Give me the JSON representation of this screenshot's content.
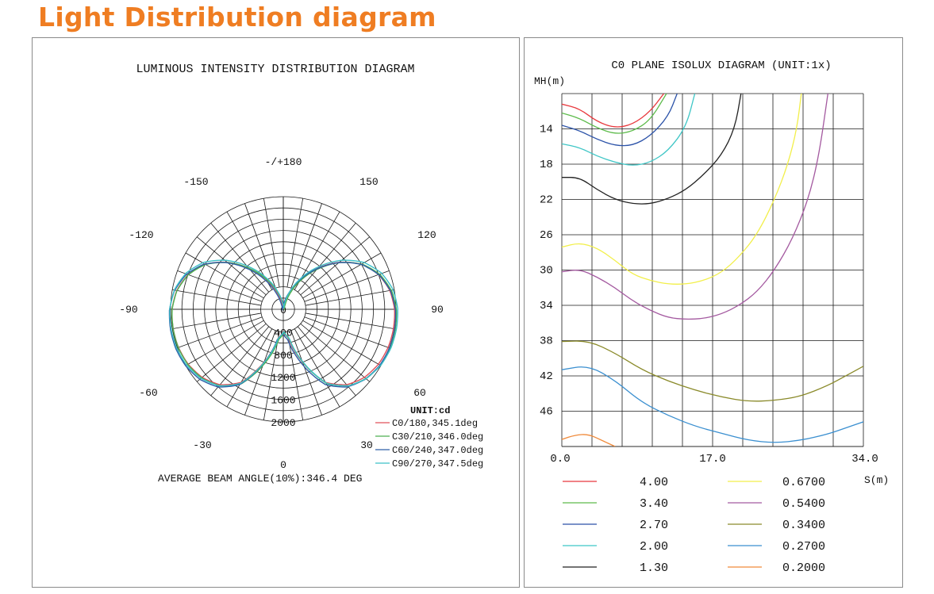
{
  "title": "Light Distribution diagram",
  "colors": {
    "title": "#EF7D22",
    "grid": "#1a1a1a",
    "c0": "#e0505a",
    "c30": "#4caf50",
    "c60": "#2e5fa8",
    "c90": "#3cc0c8",
    "iso": [
      "#e8383d",
      "#5dbb4b",
      "#2b52a8",
      "#3fc6c6",
      "#222222",
      "#f2ef4a",
      "#a45aa0",
      "#8a8a2a",
      "#3a8fd0",
      "#f08a3a"
    ]
  },
  "chart_data": [
    {
      "type": "polar",
      "title": "LUMINOUS INTENSITY DISTRIBUTION DIAGRAM",
      "unit_label": "UNIT:cd",
      "angle_labels": [
        "-/+180",
        "-150",
        "150",
        "-120",
        "120",
        "-90",
        "90",
        "-60",
        "60",
        "-30",
        "30",
        "0"
      ],
      "radial_labels": [
        "0",
        "400",
        "800",
        "1200",
        "1600",
        "2000"
      ],
      "radial_max": 2000,
      "grid": true,
      "legend_position": "bottom-right",
      "series": [
        {
          "name": "C0/180,345.1deg",
          "color_key": "c0"
        },
        {
          "name": "C30/210,346.0deg",
          "color_key": "c30"
        },
        {
          "name": "C60/240,347.0deg",
          "color_key": "c60"
        },
        {
          "name": "C90/270,347.5deg",
          "color_key": "c90"
        }
      ],
      "profile_deg_cd": [
        [
          0,
          400
        ],
        [
          10,
          520
        ],
        [
          20,
          1000
        ],
        [
          30,
          1500
        ],
        [
          40,
          1750
        ],
        [
          50,
          1880
        ],
        [
          60,
          1950
        ],
        [
          70,
          1980
        ],
        [
          80,
          1985
        ],
        [
          90,
          1975
        ],
        [
          100,
          1920
        ],
        [
          110,
          1800
        ],
        [
          120,
          1600
        ],
        [
          130,
          1300
        ],
        [
          140,
          950
        ],
        [
          150,
          620
        ],
        [
          160,
          320
        ],
        [
          170,
          90
        ],
        [
          180,
          0
        ]
      ],
      "footer": "AVERAGE BEAM ANGLE(10%):346.4 DEG"
    },
    {
      "type": "isolux",
      "title": "C0 PLANE ISOLUX DIAGRAM (UNIT:1x)",
      "ylabel": "MH(m)",
      "xlabel": "S(m)",
      "y_ticks": [
        "14",
        "18",
        "22",
        "26",
        "30",
        "34",
        "38",
        "42",
        "46"
      ],
      "x_ticks": [
        "0.0",
        "17.0",
        "34.0"
      ],
      "xlim": [
        0,
        34
      ],
      "ylim": [
        10,
        50
      ],
      "grid": true,
      "legend_position": "bottom",
      "levels": [
        {
          "label": "4.00",
          "color_key": 0,
          "pts": [
            [
              0,
              11.2
            ],
            [
              2,
              11.7
            ],
            [
              4,
              13.2
            ],
            [
              6,
              13.9
            ],
            [
              8,
              13.5
            ],
            [
              10,
              12.0
            ],
            [
              11.5,
              10.0
            ]
          ]
        },
        {
          "label": "3.40",
          "color_key": 1,
          "pts": [
            [
              0,
              12.2
            ],
            [
              2,
              12.8
            ],
            [
              4,
              13.9
            ],
            [
              6,
              14.6
            ],
            [
              8,
              14.3
            ],
            [
              10,
              13.0
            ],
            [
              11.8,
              10.0
            ]
          ]
        },
        {
          "label": "2.70",
          "color_key": 2,
          "pts": [
            [
              0,
              13.6
            ],
            [
              2,
              14.2
            ],
            [
              4,
              15.2
            ],
            [
              6,
              15.9
            ],
            [
              8,
              15.9
            ],
            [
              10,
              14.8
            ],
            [
              12,
              12.6
            ],
            [
              13,
              10.0
            ]
          ]
        },
        {
          "label": "2.00",
          "color_key": 3,
          "pts": [
            [
              0,
              15.7
            ],
            [
              2,
              16.1
            ],
            [
              4,
              17.1
            ],
            [
              6,
              17.8
            ],
            [
              8,
              18.2
            ],
            [
              10,
              17.8
            ],
            [
              12,
              16.5
            ],
            [
              14,
              13.8
            ],
            [
              15,
              10.0
            ]
          ]
        },
        {
          "label": "1.30",
          "color_key": 4,
          "pts": [
            [
              0,
              19.5
            ],
            [
              2,
              19.5
            ],
            [
              4,
              20.9
            ],
            [
              6,
              22.0
            ],
            [
              8,
              22.5
            ],
            [
              10,
              22.5
            ],
            [
              12,
              21.9
            ],
            [
              14,
              20.9
            ],
            [
              16,
              19.2
            ],
            [
              18,
              17.0
            ],
            [
              19.5,
              14.0
            ],
            [
              20.2,
              10.0
            ]
          ]
        },
        {
          "label": "0.6700",
          "color_key": 5,
          "pts": [
            [
              0,
              27.4
            ],
            [
              2,
              26.9
            ],
            [
              4,
              27.5
            ],
            [
              6,
              28.9
            ],
            [
              8,
              30.5
            ],
            [
              10,
              31.2
            ],
            [
              12,
              31.6
            ],
            [
              14,
              31.6
            ],
            [
              16,
              31.2
            ],
            [
              18,
              30.3
            ],
            [
              20,
              28.5
            ],
            [
              22,
              26.0
            ],
            [
              24,
              22.0
            ],
            [
              25.5,
              18.0
            ],
            [
              26.5,
              14.0
            ],
            [
              27,
              10.0
            ]
          ]
        },
        {
          "label": "0.5400",
          "color_key": 6,
          "pts": [
            [
              0,
              30.2
            ],
            [
              2,
              29.9
            ],
            [
              4,
              30.8
            ],
            [
              6,
              32.0
            ],
            [
              8,
              33.5
            ],
            [
              10,
              34.6
            ],
            [
              12,
              35.4
            ],
            [
              14,
              35.6
            ],
            [
              16,
              35.5
            ],
            [
              18,
              35.0
            ],
            [
              20,
              34.0
            ],
            [
              22,
              32.5
            ],
            [
              24,
              30.0
            ],
            [
              26,
              26.5
            ],
            [
              27.8,
              22.0
            ],
            [
              29,
              17.0
            ],
            [
              30,
              10.0
            ]
          ]
        },
        {
          "label": "0.3400",
          "color_key": 7,
          "pts": [
            [
              0,
              38.1
            ],
            [
              3,
              38.0
            ],
            [
              6,
              39.4
            ],
            [
              9,
              41.3
            ],
            [
              12,
              42.6
            ],
            [
              15,
              43.6
            ],
            [
              18,
              44.4
            ],
            [
              21,
              44.9
            ],
            [
              24,
              44.8
            ],
            [
              27,
              44.3
            ],
            [
              30,
              43.1
            ],
            [
              32,
              42.0
            ],
            [
              34,
              40.9
            ]
          ]
        },
        {
          "label": "0.2700",
          "color_key": 8,
          "pts": [
            [
              0,
              41.3
            ],
            [
              3,
              40.8
            ],
            [
              6,
              42.5
            ],
            [
              9,
              45.0
            ],
            [
              12,
              46.5
            ],
            [
              15,
              47.7
            ],
            [
              18,
              48.5
            ],
            [
              21,
              49.3
            ],
            [
              24,
              49.6
            ],
            [
              27,
              49.3
            ],
            [
              30,
              48.6
            ],
            [
              32,
              47.9
            ],
            [
              34,
              47.2
            ]
          ]
        },
        {
          "label": "0.2000",
          "color_key": 9,
          "pts": [
            [
              0,
              49.2
            ],
            [
              1.5,
              48.7
            ],
            [
              3,
              48.6
            ],
            [
              4.5,
              49.3
            ],
            [
              6,
              50.0
            ]
          ]
        }
      ]
    }
  ]
}
